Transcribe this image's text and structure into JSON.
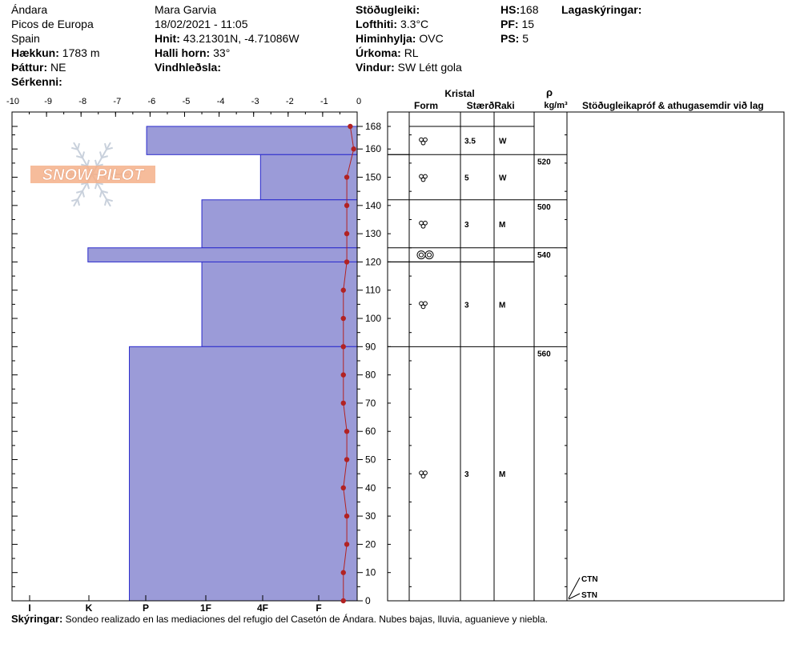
{
  "header": {
    "location": "Ándara",
    "range": "Picos de Europa",
    "country": "Spain",
    "elevation_label": "Hækkun:",
    "elevation_value": "1783 m",
    "aspect_label": "Þáttur:",
    "aspect_value": "NE",
    "features_label": "Sérkenni:",
    "observer": "Mara Garvia",
    "datetime": "18/02/2021 - 11:05",
    "coords_label": "Hnit:",
    "coords_value": "43.21301N, -4.71086W",
    "slope_label": "Halli horn:",
    "slope_value": "33°",
    "wind_loading_label": "Vindhleðsla:",
    "stability_label": "Stöðugleiki:",
    "air_temp_label": "Lofthiti:",
    "air_temp_value": "3.3°C",
    "sky_label": "Himinhylja:",
    "sky_value": "OVC",
    "precip_label": "Úrkoma:",
    "precip_value": "RL",
    "wind_label": "Vindur:",
    "wind_value": "SW Létt gola",
    "hs_label": "HS:",
    "hs_value": "168",
    "pf_label": "PF:",
    "pf_value": "15",
    "ps_label": "PS:",
    "ps_value": "5",
    "layer_legend_label": "Lagaskýringar:"
  },
  "logo": {
    "text": "SNOW PILOT"
  },
  "columns": {
    "crystal": "Kristal",
    "form": "Form",
    "size": "Stærð",
    "moisture": "Raki",
    "rho": "ρ",
    "rho_unit": "kg/m³",
    "tests": "Stöðugleikapróf & athugasemdir við lag"
  },
  "legend": {
    "label": "Skýringar:",
    "text": "Sondeo realizado en las mediaciones del  refugio del Casetón de Ándara. Nubes bajas, lluvia, aguanieve y niebla."
  },
  "test_labels": [
    "CTN",
    "STN"
  ],
  "chart_data": {
    "type": "snow-profile",
    "temperature_axis": {
      "min": -10,
      "max": 0,
      "ticks": [
        -10,
        -9,
        -8,
        -7,
        -6,
        -5,
        -4,
        -3,
        -2,
        -1,
        0
      ]
    },
    "height_axis": {
      "min": 0,
      "max": 168,
      "ticks": [
        0,
        10,
        20,
        30,
        40,
        50,
        60,
        70,
        80,
        90,
        100,
        110,
        120,
        130,
        140,
        150,
        160,
        168
      ]
    },
    "hardness_ticks": [
      "I",
      "K",
      "P",
      "1F",
      "4F",
      "F"
    ],
    "layers": [
      {
        "top": 168,
        "bottom": 158,
        "hardness": -6.1,
        "form": "new-snow",
        "size": "3.5",
        "moisture": "W",
        "density": ""
      },
      {
        "top": 158,
        "bottom": 142,
        "hardness": -2.8,
        "form": "new-snow",
        "size": "5",
        "moisture": "W",
        "density": "520"
      },
      {
        "top": 142,
        "bottom": 125,
        "hardness": -4.5,
        "form": "new-snow",
        "size": "3",
        "moisture": "M",
        "density": "500"
      },
      {
        "top": 125,
        "bottom": 120,
        "hardness": -7.8,
        "form": "melt-forms",
        "size": "",
        "moisture": "",
        "density": "540"
      },
      {
        "top": 120,
        "bottom": 90,
        "hardness": -4.5,
        "form": "new-snow",
        "size": "3",
        "moisture": "M",
        "density": ""
      },
      {
        "top": 90,
        "bottom": 0,
        "hardness": -6.6,
        "form": "new-snow",
        "size": "3",
        "moisture": "M",
        "density": "560"
      }
    ],
    "temperature_profile": [
      {
        "h": 168,
        "t": -0.2
      },
      {
        "h": 160,
        "t": -0.1
      },
      {
        "h": 150,
        "t": -0.3
      },
      {
        "h": 140,
        "t": -0.3
      },
      {
        "h": 130,
        "t": -0.3
      },
      {
        "h": 120,
        "t": -0.3
      },
      {
        "h": 110,
        "t": -0.4
      },
      {
        "h": 100,
        "t": -0.4
      },
      {
        "h": 90,
        "t": -0.4
      },
      {
        "h": 80,
        "t": -0.4
      },
      {
        "h": 70,
        "t": -0.4
      },
      {
        "h": 60,
        "t": -0.3
      },
      {
        "h": 50,
        "t": -0.3
      },
      {
        "h": 40,
        "t": -0.4
      },
      {
        "h": 30,
        "t": -0.3
      },
      {
        "h": 20,
        "t": -0.3
      },
      {
        "h": 10,
        "t": -0.4
      },
      {
        "h": 0,
        "t": -0.4
      }
    ],
    "colors": {
      "layer_fill": "#9b9bd8",
      "layer_stroke": "#2a2acc",
      "temperature": "#b22222",
      "logo": "#f5b08a"
    }
  }
}
